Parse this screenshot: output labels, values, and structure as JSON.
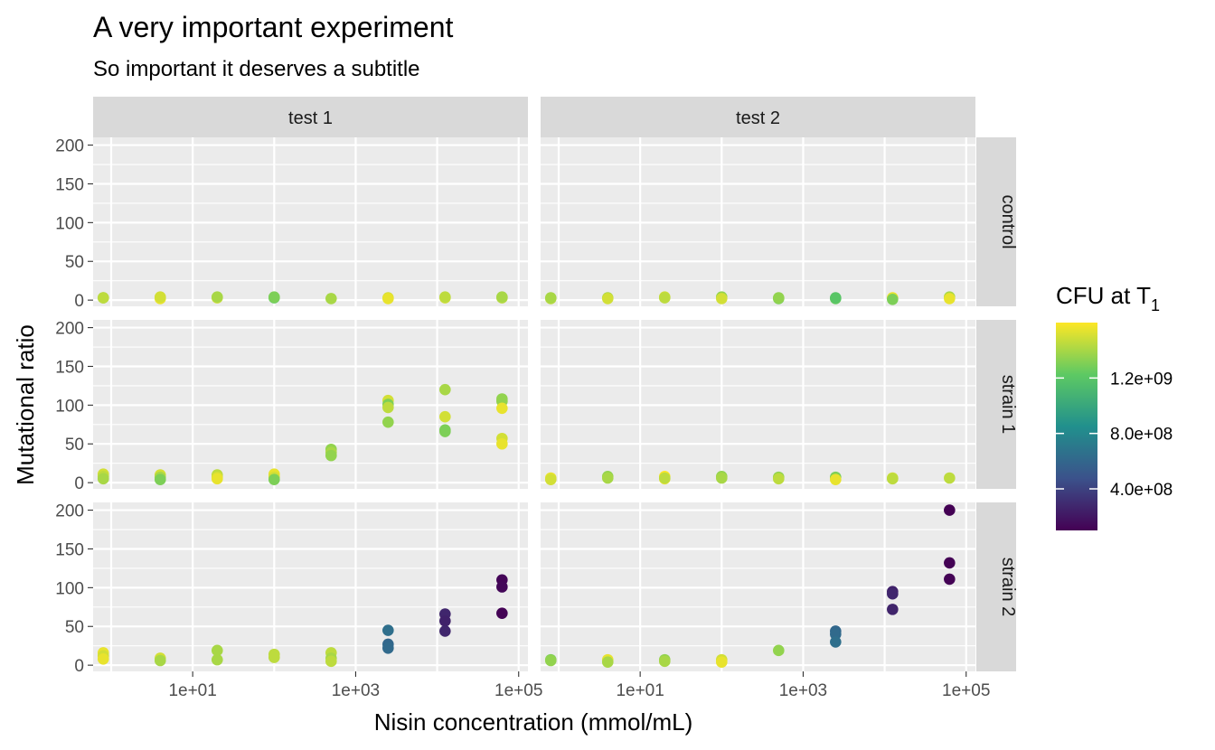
{
  "chart_data": {
    "type": "scatter",
    "title": "A very important experiment",
    "subtitle": "So important it deserves a subtitle",
    "xlabel": "Nisin concentration (mmol/mL)",
    "ylabel": "Mutational ratio",
    "x_scale": "log10",
    "xlim": [
      0.6,
      130000
    ],
    "ylim": [
      -8,
      210
    ],
    "x_ticks": [
      10,
      1000,
      100000
    ],
    "x_tick_labels": [
      "1e+01",
      "1e+03",
      "1e+05"
    ],
    "y_ticks": [
      0,
      50,
      100,
      150,
      200
    ],
    "y_tick_labels": [
      "0",
      "50",
      "100",
      "150",
      "200"
    ],
    "grid": true,
    "facet_cols": [
      "test 1",
      "test 2"
    ],
    "facet_rows": [
      "control",
      "strain 1",
      "strain 2"
    ],
    "color_legend": {
      "title": "CFU at",
      "title_symbol": "T",
      "title_subscript": "1",
      "placement": "right",
      "palette": [
        "#440154",
        "#3b528b",
        "#21908d",
        "#5dc963",
        "#fde725"
      ],
      "range": [
        100000000,
        1600000000
      ],
      "breaks": [
        400000000,
        800000000,
        1200000000
      ],
      "break_labels": [
        "4.0e+08",
        "8.0e+08",
        "1.2e+09"
      ]
    },
    "panels": [
      {
        "col": "test 1",
        "row": "control",
        "points": [
          {
            "x": 0.8,
            "y": 3,
            "cfu": 1350000000.0
          },
          {
            "x": 0.8,
            "y": 3,
            "cfu": 1450000000.0
          },
          {
            "x": 4,
            "y": 3,
            "cfu": 1450000000.0
          },
          {
            "x": 4,
            "y": 2,
            "cfu": 1550000000.0
          },
          {
            "x": 4,
            "y": 4,
            "cfu": 1500000000.0
          },
          {
            "x": 20,
            "y": 3,
            "cfu": 1500000000.0
          },
          {
            "x": 20,
            "y": 4,
            "cfu": 1400000000.0
          },
          {
            "x": 100,
            "y": 3,
            "cfu": 1250000000.0
          },
          {
            "x": 100,
            "y": 4,
            "cfu": 1300000000.0
          },
          {
            "x": 500,
            "y": 2,
            "cfu": 1400000000.0
          },
          {
            "x": 2500,
            "y": 3,
            "cfu": 1500000000.0
          },
          {
            "x": 2500,
            "y": 2,
            "cfu": 1550000000.0
          },
          {
            "x": 12500,
            "y": 3,
            "cfu": 1500000000.0
          },
          {
            "x": 12500,
            "y": 4,
            "cfu": 1450000000.0
          },
          {
            "x": 62500,
            "y": 3,
            "cfu": 1450000000.0
          },
          {
            "x": 62500,
            "y": 4,
            "cfu": 1400000000.0
          }
        ]
      },
      {
        "col": "test 2",
        "row": "control",
        "points": [
          {
            "x": 0.8,
            "y": 2,
            "cfu": 1450000000.0
          },
          {
            "x": 0.8,
            "y": 3,
            "cfu": 1400000000.0
          },
          {
            "x": 4,
            "y": 3,
            "cfu": 1400000000.0
          },
          {
            "x": 4,
            "y": 2,
            "cfu": 1500000000.0
          },
          {
            "x": 20,
            "y": 4,
            "cfu": 1500000000.0
          },
          {
            "x": 20,
            "y": 3,
            "cfu": 1450000000.0
          },
          {
            "x": 100,
            "y": 4,
            "cfu": 1350000000.0
          },
          {
            "x": 100,
            "y": 2,
            "cfu": 1500000000.0
          },
          {
            "x": 500,
            "y": 2,
            "cfu": 1300000000.0
          },
          {
            "x": 500,
            "y": 3,
            "cfu": 1350000000.0
          },
          {
            "x": 2500,
            "y": 2,
            "cfu": 1250000000.0
          },
          {
            "x": 2500,
            "y": 3,
            "cfu": 1200000000.0
          },
          {
            "x": 12500,
            "y": 3,
            "cfu": 1550000000.0
          },
          {
            "x": 12500,
            "y": 1,
            "cfu": 1300000000.0
          },
          {
            "x": 62500,
            "y": 4,
            "cfu": 1400000000.0
          },
          {
            "x": 62500,
            "y": 2,
            "cfu": 1550000000.0
          }
        ]
      },
      {
        "col": "test 1",
        "row": "strain 1",
        "points": [
          {
            "x": 0.8,
            "y": 11,
            "cfu": 1500000000.0
          },
          {
            "x": 0.8,
            "y": 8,
            "cfu": 1450000000.0
          },
          {
            "x": 0.8,
            "y": 5,
            "cfu": 1400000000.0
          },
          {
            "x": 4,
            "y": 10,
            "cfu": 1500000000.0
          },
          {
            "x": 4,
            "y": 7,
            "cfu": 1400000000.0
          },
          {
            "x": 4,
            "y": 4,
            "cfu": 1300000000.0
          },
          {
            "x": 20,
            "y": 10,
            "cfu": 1450000000.0
          },
          {
            "x": 20,
            "y": 7,
            "cfu": 1500000000.0
          },
          {
            "x": 20,
            "y": 5,
            "cfu": 1550000000.0
          },
          {
            "x": 100,
            "y": 11,
            "cfu": 1550000000.0
          },
          {
            "x": 100,
            "y": 7,
            "cfu": 1500000000.0
          },
          {
            "x": 100,
            "y": 4,
            "cfu": 1300000000.0
          },
          {
            "x": 500,
            "y": 43,
            "cfu": 1350000000.0
          },
          {
            "x": 500,
            "y": 39,
            "cfu": 1400000000.0
          },
          {
            "x": 500,
            "y": 35,
            "cfu": 1350000000.0
          },
          {
            "x": 2500,
            "y": 106,
            "cfu": 1500000000.0
          },
          {
            "x": 2500,
            "y": 101,
            "cfu": 1300000000.0
          },
          {
            "x": 2500,
            "y": 97,
            "cfu": 1450000000.0
          },
          {
            "x": 2500,
            "y": 78,
            "cfu": 1350000000.0
          },
          {
            "x": 12500,
            "y": 120,
            "cfu": 1400000000.0
          },
          {
            "x": 12500,
            "y": 85,
            "cfu": 1500000000.0
          },
          {
            "x": 12500,
            "y": 68,
            "cfu": 1300000000.0
          },
          {
            "x": 12500,
            "y": 66,
            "cfu": 1300000000.0
          },
          {
            "x": 62500,
            "y": 108,
            "cfu": 1350000000.0
          },
          {
            "x": 62500,
            "y": 105,
            "cfu": 1350000000.0
          },
          {
            "x": 62500,
            "y": 96,
            "cfu": 1550000000.0
          },
          {
            "x": 62500,
            "y": 57,
            "cfu": 1500000000.0
          },
          {
            "x": 62500,
            "y": 50,
            "cfu": 1550000000.0
          }
        ]
      },
      {
        "col": "test 2",
        "row": "strain 1",
        "points": [
          {
            "x": 0.8,
            "y": 6,
            "cfu": 1550000000.0
          },
          {
            "x": 0.8,
            "y": 4,
            "cfu": 1500000000.0
          },
          {
            "x": 4,
            "y": 8,
            "cfu": 1350000000.0
          },
          {
            "x": 4,
            "y": 6,
            "cfu": 1400000000.0
          },
          {
            "x": 20,
            "y": 8,
            "cfu": 1600000000.0
          },
          {
            "x": 20,
            "y": 5,
            "cfu": 1550000000.0
          },
          {
            "x": 20,
            "y": 6,
            "cfu": 1450000000.0
          },
          {
            "x": 100,
            "y": 8,
            "cfu": 1350000000.0
          },
          {
            "x": 100,
            "y": 6,
            "cfu": 1400000000.0
          },
          {
            "x": 500,
            "y": 7,
            "cfu": 1350000000.0
          },
          {
            "x": 500,
            "y": 5,
            "cfu": 1450000000.0
          },
          {
            "x": 2500,
            "y": 7,
            "cfu": 1300000000.0
          },
          {
            "x": 2500,
            "y": 4,
            "cfu": 1550000000.0
          },
          {
            "x": 12500,
            "y": 6,
            "cfu": 1500000000.0
          },
          {
            "x": 12500,
            "y": 5,
            "cfu": 1450000000.0
          },
          {
            "x": 62500,
            "y": 6,
            "cfu": 1450000000.0
          }
        ]
      },
      {
        "col": "test 1",
        "row": "strain 2",
        "points": [
          {
            "x": 0.8,
            "y": 16,
            "cfu": 1550000000.0
          },
          {
            "x": 0.8,
            "y": 12,
            "cfu": 1500000000.0
          },
          {
            "x": 0.8,
            "y": 8,
            "cfu": 1550000000.0
          },
          {
            "x": 4,
            "y": 9,
            "cfu": 1500000000.0
          },
          {
            "x": 4,
            "y": 6,
            "cfu": 1400000000.0
          },
          {
            "x": 20,
            "y": 19,
            "cfu": 1400000000.0
          },
          {
            "x": 20,
            "y": 7,
            "cfu": 1400000000.0
          },
          {
            "x": 100,
            "y": 14,
            "cfu": 1450000000.0
          },
          {
            "x": 100,
            "y": 10,
            "cfu": 1450000000.0
          },
          {
            "x": 500,
            "y": 16,
            "cfu": 1450000000.0
          },
          {
            "x": 500,
            "y": 9,
            "cfu": 1400000000.0
          },
          {
            "x": 500,
            "y": 5,
            "cfu": 1450000000.0
          },
          {
            "x": 2500,
            "y": 45,
            "cfu": 650000000.0
          },
          {
            "x": 2500,
            "y": 27,
            "cfu": 600000000.0
          },
          {
            "x": 2500,
            "y": 22,
            "cfu": 620000000.0
          },
          {
            "x": 12500,
            "y": 66,
            "cfu": 270000000.0
          },
          {
            "x": 12500,
            "y": 57,
            "cfu": 250000000.0
          },
          {
            "x": 12500,
            "y": 44,
            "cfu": 270000000.0
          },
          {
            "x": 62500,
            "y": 110,
            "cfu": 120000000.0
          },
          {
            "x": 62500,
            "y": 101,
            "cfu": 130000000.0
          },
          {
            "x": 62500,
            "y": 67,
            "cfu": 110000000.0
          }
        ]
      },
      {
        "col": "test 2",
        "row": "strain 2",
        "points": [
          {
            "x": 0.8,
            "y": 7,
            "cfu": 1300000000.0
          },
          {
            "x": 0.8,
            "y": 6,
            "cfu": 1350000000.0
          },
          {
            "x": 4,
            "y": 7,
            "cfu": 1550000000.0
          },
          {
            "x": 4,
            "y": 4,
            "cfu": 1400000000.0
          },
          {
            "x": 20,
            "y": 7,
            "cfu": 1350000000.0
          },
          {
            "x": 20,
            "y": 5,
            "cfu": 1400000000.0
          },
          {
            "x": 100,
            "y": 7,
            "cfu": 1500000000.0
          },
          {
            "x": 100,
            "y": 4,
            "cfu": 1550000000.0
          },
          {
            "x": 500,
            "y": 19,
            "cfu": 1350000000.0
          },
          {
            "x": 2500,
            "y": 44,
            "cfu": 600000000.0
          },
          {
            "x": 2500,
            "y": 40,
            "cfu": 620000000.0
          },
          {
            "x": 2500,
            "y": 30,
            "cfu": 650000000.0
          },
          {
            "x": 12500,
            "y": 95,
            "cfu": 250000000.0
          },
          {
            "x": 12500,
            "y": 92,
            "cfu": 270000000.0
          },
          {
            "x": 12500,
            "y": 72,
            "cfu": 260000000.0
          },
          {
            "x": 62500,
            "y": 200,
            "cfu": 100000000.0
          },
          {
            "x": 62500,
            "y": 132,
            "cfu": 110000000.0
          },
          {
            "x": 62500,
            "y": 111,
            "cfu": 110000000.0
          }
        ]
      }
    ]
  }
}
